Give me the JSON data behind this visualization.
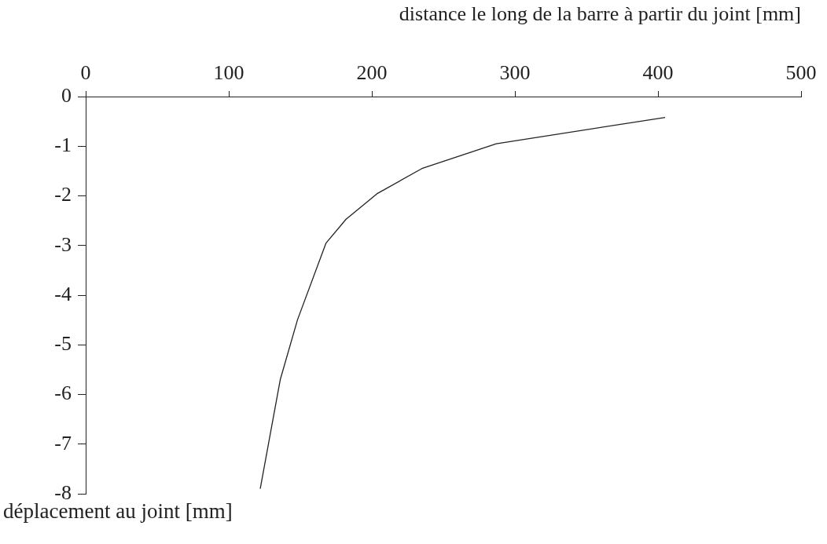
{
  "chart_data": {
    "type": "line",
    "xlabel": "distance le long de la barre à partir du joint [mm]",
    "ylabel": "déplacement au joint [mm]",
    "x": [
      122,
      136,
      148,
      168,
      182,
      204,
      235,
      287,
      405
    ],
    "series": [
      {
        "color": "#222222",
        "values": [
          -7.9,
          -5.7,
          -4.5,
          -2.95,
          -2.47,
          -1.95,
          -1.45,
          -0.95,
          -0.42
        ]
      }
    ],
    "xlim": [
      0,
      500
    ],
    "xticks": [
      0,
      100,
      200,
      300,
      400,
      500
    ],
    "ylim": [
      -8,
      0
    ],
    "yticks": [
      0,
      -1,
      -2,
      -3,
      -4,
      -5,
      -6,
      -7,
      -8
    ],
    "legend": false
  }
}
